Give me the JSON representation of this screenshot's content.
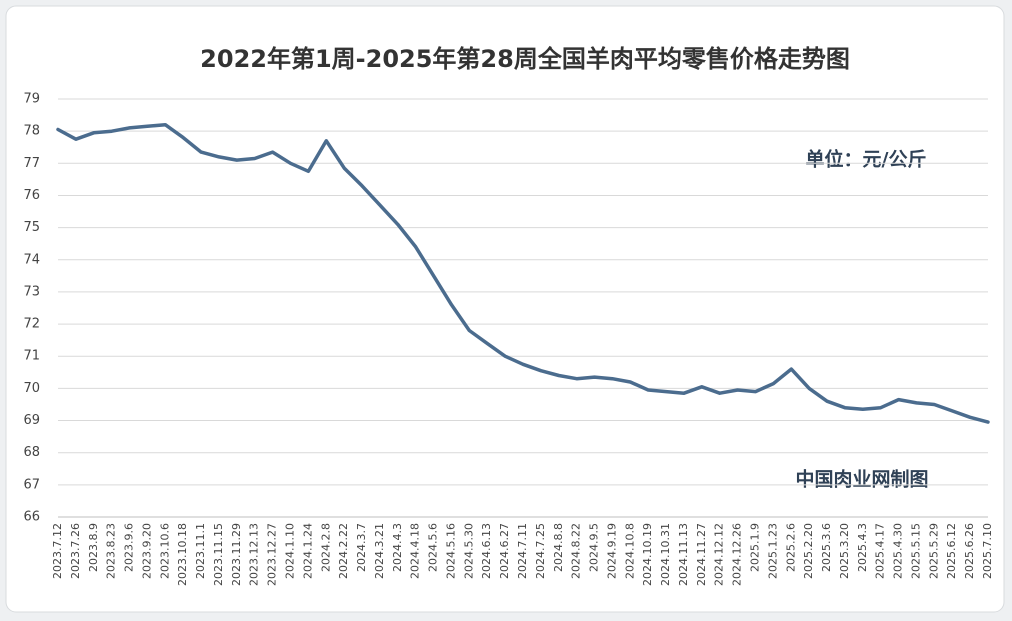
{
  "chart_data": {
    "type": "line",
    "title": "2022年第1周-2025年第28周全国羊肉平均零售价格走势图",
    "annotations": [
      "单位：元/公斤",
      "中国肉业网制图"
    ],
    "categories": [
      "2023.7.12",
      "2023.7.26",
      "2023.8.9",
      "2023.8.23",
      "2023.9.6",
      "2023.9.20",
      "2023.10.6",
      "2023.10.18",
      "2023.11.1",
      "2023.11.15",
      "2023.11.29",
      "2023.12.13",
      "2023.12.27",
      "2024.1.10",
      "2024.1.24",
      "2024.2.8",
      "2024.2.22",
      "2024.3.7",
      "2024.3.21",
      "2024.4.3",
      "2024.4.18",
      "2024.5.6",
      "2024.5.16",
      "2024.5.30",
      "2024.6.13",
      "2024.6.27",
      "2024.7.11",
      "2024.7.25",
      "2024.8.8",
      "2024.8.22",
      "2024.9.5",
      "2024.9.19",
      "2024.10.8",
      "2024.10.19",
      "2024.10.31",
      "2024.11.13",
      "2024.11.27",
      "2024.12.12",
      "2024.12.26",
      "2025.1.9",
      "2025.1.23",
      "2025.2.6",
      "2025.2.20",
      "2025.3.6",
      "2025.3.20",
      "2025.4.3",
      "2025.4.17",
      "2025.4.30",
      "2025.5.15",
      "2025.5.29",
      "2025.6.12",
      "2025.6.26",
      "2025.7.10"
    ],
    "values": [
      78.05,
      77.75,
      77.95,
      78.0,
      78.1,
      78.15,
      78.2,
      77.8,
      77.35,
      77.2,
      77.1,
      77.15,
      77.35,
      77.0,
      76.75,
      77.7,
      76.85,
      76.3,
      75.7,
      75.1,
      74.4,
      73.5,
      72.6,
      71.8,
      71.4,
      71.0,
      70.75,
      70.55,
      70.4,
      70.3,
      70.35,
      70.3,
      70.2,
      69.95,
      69.9,
      69.85,
      70.05,
      69.85,
      69.95,
      69.9,
      70.15,
      70.6,
      70.0,
      69.6,
      69.4,
      69.35,
      69.4,
      69.65,
      69.55,
      69.5,
      69.3,
      69.1,
      68.95
    ],
    "color": "#4b6c8e",
    "ylim": [
      66,
      79
    ],
    "yticks": [
      66,
      67,
      68,
      69,
      70,
      71,
      72,
      73,
      74,
      75,
      76,
      77,
      78,
      79
    ],
    "grid": true
  }
}
